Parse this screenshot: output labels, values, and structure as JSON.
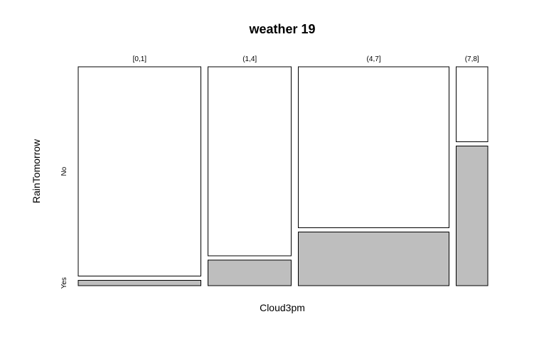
{
  "chart_data": {
    "type": "mosaic",
    "title": "weather 19",
    "xlabel": "Cloud3pm",
    "ylabel": "RainTomorrow",
    "x_categories": [
      "[0,1]",
      "(1,4]",
      "(4,7]",
      "(7,8]"
    ],
    "y_categories": [
      "Yes",
      "No"
    ],
    "x_shares": [
      0.31,
      0.21,
      0.38,
      0.08
    ],
    "series": [
      {
        "category": "Yes",
        "values": [
          0.025,
          0.12,
          0.25,
          0.65
        ]
      },
      {
        "category": "No",
        "values": [
          0.975,
          0.88,
          0.75,
          0.35
        ]
      }
    ],
    "grid": false,
    "legend": "none"
  },
  "colors": {
    "Yes": "#bebebe",
    "No": "#ffffff",
    "stroke": "#000000",
    "background": "#ffffff"
  }
}
